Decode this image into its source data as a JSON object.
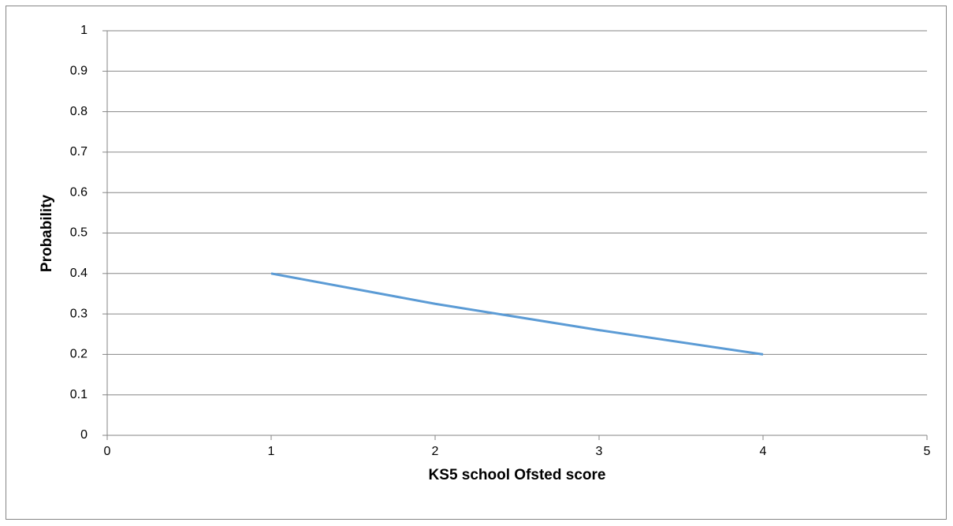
{
  "chart_data": {
    "type": "line",
    "x_label": "KS5 school Ofsted score",
    "y_label": "Probability",
    "x": [
      1,
      2,
      3,
      4
    ],
    "series": [
      {
        "color": "#5b9bd5",
        "values": [
          0.4,
          0.325,
          0.26,
          0.2
        ]
      }
    ],
    "xlim": [
      0,
      5
    ],
    "xticks": [
      0,
      1,
      2,
      3,
      4,
      5
    ],
    "ylim": [
      0,
      1
    ],
    "yticks": [
      0,
      0.1,
      0.2,
      0.3,
      0.4,
      0.5,
      0.6,
      0.7,
      0.8,
      0.9,
      1
    ],
    "grid": true
  }
}
